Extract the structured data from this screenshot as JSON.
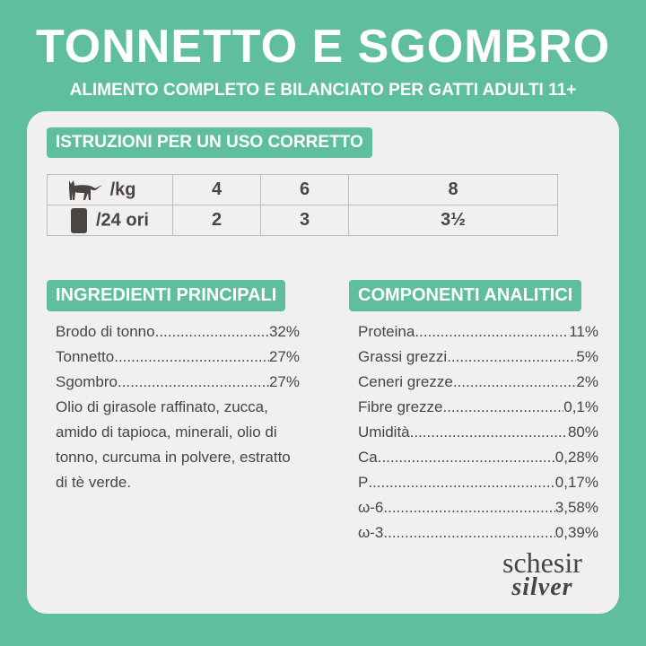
{
  "header": {
    "title": "TONNETTO E SGOMBRO",
    "subtitle": "ALIMENTO COMPLETO E BILANCIATO PER GATTI ADULTI 11+"
  },
  "instructions": {
    "heading": "ISTRUZIONI PER UN USO CORRETTO",
    "rows": [
      {
        "icon": "cat-icon",
        "label": "/kg",
        "values": [
          "4",
          "6",
          "8"
        ]
      },
      {
        "icon": "pouch-icon",
        "label": "/24 ori",
        "values": [
          "2",
          "3",
          "3½"
        ]
      }
    ]
  },
  "ingredients": {
    "heading": "INGREDIENTI PRINCIPALI",
    "items": [
      {
        "name": "Brodo di tonno",
        "value": "32%"
      },
      {
        "name": "Tonnetto",
        "value": "27%"
      },
      {
        "name": "Sgombro",
        "value": "27%"
      }
    ],
    "other": "Olio di girasole raffinato, zucca, amido di tapioca, minerali, olio di tonno, curcuma in polvere, estratto di tè verde."
  },
  "components": {
    "heading": "COMPONENTI ANALITICI",
    "items": [
      {
        "name": "Proteina",
        "value": "11%"
      },
      {
        "name": "Grassi grezzi",
        "value": "5%"
      },
      {
        "name": "Ceneri grezze",
        "value": "2%"
      },
      {
        "name": "Fibre grezze",
        "value": "0,1%"
      },
      {
        "name": "Umidità",
        "value": "80%"
      },
      {
        "name": "Ca",
        "value": "0,28%"
      },
      {
        "name": "P",
        "value": "0,17%"
      },
      {
        "name": "ω-6",
        "value": "3,58%"
      },
      {
        "name": "ω-3",
        "value": "0,39%"
      }
    ]
  },
  "logo": {
    "line1": "schesir",
    "line2": "silver"
  },
  "colors": {
    "accent": "#5fbe9b",
    "card": "#f0f0ef",
    "text": "#4a4443"
  }
}
